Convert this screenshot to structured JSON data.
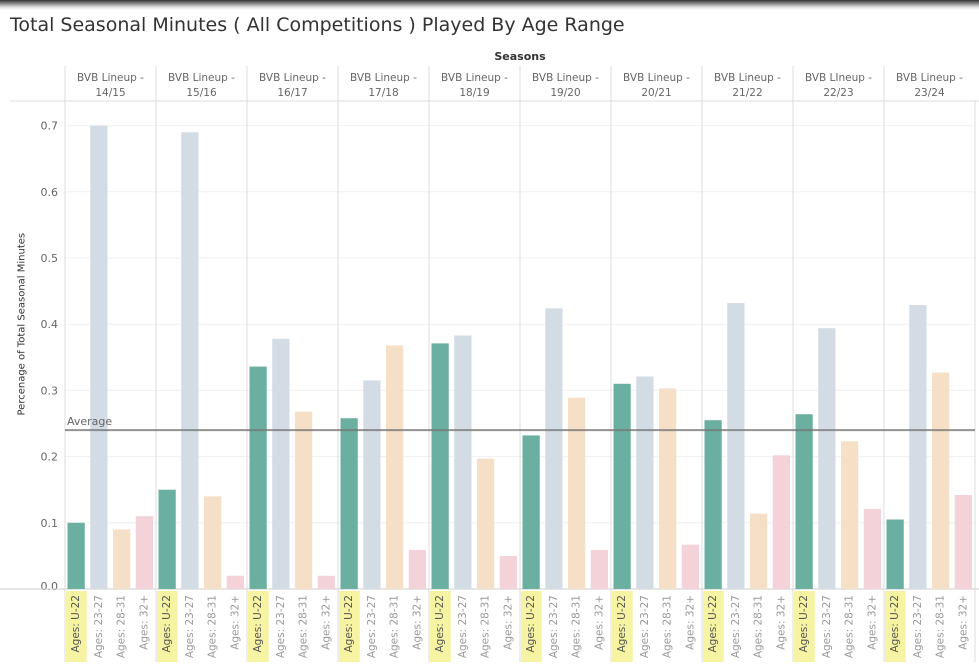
{
  "chart_data": {
    "type": "bar",
    "title": "Total Seasonal Minutes ( All Competitions ) Played By Age Range",
    "column_header": "Seasons",
    "ylabel": "Percenage of Total Seasonal Minutes",
    "ylim": [
      0,
      0.72
    ],
    "yticks": [
      "0.0",
      "0.1",
      "0.2",
      "0.3",
      "0.4",
      "0.5",
      "0.6",
      "0.7"
    ],
    "grid": true,
    "panels": [
      {
        "label": "BVB Lineup - 14/15",
        "line1": "BVB Lineup -",
        "line2": "14/15",
        "values": [
          0.1,
          0.7,
          0.09,
          0.11
        ]
      },
      {
        "label": "BVB Lineup - 15/16",
        "line1": "BVB Lineup -",
        "line2": "15/16",
        "values": [
          0.15,
          0.69,
          0.14,
          0.02
        ]
      },
      {
        "label": "BVB Lineup - 16/17",
        "line1": "BVB Lineup -",
        "line2": "16/17",
        "values": [
          0.336,
          0.378,
          0.268,
          0.02
        ]
      },
      {
        "label": "BVB Lineup - 17/18",
        "line1": "BVB Lineup -",
        "line2": "17/18",
        "values": [
          0.258,
          0.315,
          0.368,
          0.059
        ]
      },
      {
        "label": "BVB Lineup - 18/19",
        "line1": "BVB Lineup -",
        "line2": "18/19",
        "values": [
          0.371,
          0.383,
          0.197,
          0.05
        ]
      },
      {
        "label": "BVB Lineup - 19/20",
        "line1": "BVB Lineup -",
        "line2": "19/20",
        "values": [
          0.232,
          0.424,
          0.289,
          0.059
        ]
      },
      {
        "label": "BVB Lineup - 20/21",
        "line1": "BVB Lineup -",
        "line2": "20/21",
        "values": [
          0.31,
          0.321,
          0.303,
          0.067
        ]
      },
      {
        "label": "BVB Lineup - 21/22",
        "line1": "BVB Lineup -",
        "line2": "21/22",
        "values": [
          0.255,
          0.432,
          0.114,
          0.202
        ]
      },
      {
        "label": "BVB LIneup - 22/23",
        "line1": "BVB LIneup -",
        "line2": "22/23",
        "values": [
          0.264,
          0.394,
          0.223,
          0.121
        ]
      },
      {
        "label": "BVB Lineup - 23/24",
        "line1": "BVB Lineup -",
        "line2": "23/24",
        "values": [
          0.105,
          0.429,
          0.327,
          0.142
        ]
      }
    ],
    "categories": [
      "Ages: U-22",
      "Ages: 23-27",
      "Ages: 28-31",
      "Ages: 32+"
    ],
    "colors": [
      "#6aaf9f",
      "#d3dce5",
      "#f5dfc6",
      "#f3d3d9"
    ],
    "highlight_category": "Ages: U-22",
    "highlight_color": "#f6f3a2",
    "reference_line": {
      "label": "Average",
      "value": 0.24,
      "color": "#777777"
    }
  }
}
